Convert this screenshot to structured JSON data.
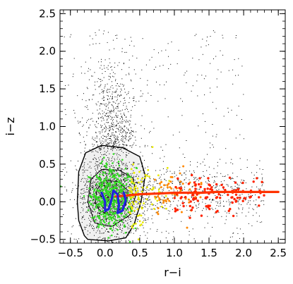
{
  "chart_data": {
    "type": "scatter",
    "title": "",
    "xlabel": "r−i",
    "ylabel": "i−z",
    "xlim": [
      -0.65,
      2.6
    ],
    "ylim": [
      -0.55,
      2.55
    ],
    "xticks": [
      -0.5,
      0.0,
      0.5,
      1.0,
      1.5,
      2.0,
      2.5
    ],
    "xtick_labels": [
      "−0.5",
      "0.0",
      "0.5",
      "1.0",
      "1.5",
      "2.0",
      "2.5"
    ],
    "yticks": [
      -0.5,
      0.0,
      0.5,
      1.0,
      1.5,
      2.0,
      2.5
    ],
    "ytick_labels": [
      "−0.5",
      "0.0",
      "0.5",
      "1.0",
      "1.5",
      "2.0",
      "2.5"
    ],
    "grid": false,
    "legend": "none",
    "colors": {
      "points_field": "#000000",
      "density_fill": "#e6e6e6",
      "contours": "#000000",
      "green_points": "#33dd22",
      "yellow_points": "#e8e800",
      "orange_points": "#ff8800",
      "red_points": "#ff2200",
      "locus_line_red": "#ff3300",
      "locus_line_blue": "#2222dd"
    },
    "density_region": {
      "outer_contour": [
        [
          -0.3,
          -0.45
        ],
        [
          -0.25,
          -0.5
        ],
        [
          0.05,
          -0.52
        ],
        [
          0.3,
          -0.48
        ],
        [
          0.42,
          -0.3
        ],
        [
          0.52,
          0.0
        ],
        [
          0.58,
          0.35
        ],
        [
          0.5,
          0.6
        ],
        [
          0.25,
          0.72
        ],
        [
          -0.05,
          0.75
        ],
        [
          -0.28,
          0.65
        ],
        [
          -0.38,
          0.4
        ],
        [
          -0.4,
          0.0
        ],
        [
          -0.38,
          -0.25
        ]
      ],
      "middle_contour": [
        [
          -0.15,
          -0.28
        ],
        [
          0.1,
          -0.33
        ],
        [
          0.35,
          -0.18
        ],
        [
          0.45,
          0.1
        ],
        [
          0.4,
          0.32
        ],
        [
          0.2,
          0.42
        ],
        [
          -0.05,
          0.43
        ],
        [
          -0.2,
          0.3
        ],
        [
          -0.25,
          0.0
        ]
      ],
      "inner_contour": [
        [
          -0.08,
          -0.12
        ],
        [
          0.1,
          -0.18
        ],
        [
          0.3,
          -0.05
        ],
        [
          0.33,
          0.15
        ],
        [
          0.18,
          0.27
        ],
        [
          -0.02,
          0.28
        ],
        [
          -0.12,
          0.15
        ],
        [
          -0.14,
          0.0
        ]
      ]
    },
    "series": [
      {
        "type": "line",
        "points": [
          [
            0.15,
            0.07
          ],
          [
            0.5,
            0.1
          ],
          [
            0.8,
            0.11
          ],
          [
            1.0,
            0.12
          ],
          [
            1.2,
            0.12
          ],
          [
            1.4,
            0.12
          ],
          [
            1.6,
            0.13
          ],
          [
            1.8,
            0.13
          ],
          [
            2.0,
            0.13
          ],
          [
            2.2,
            0.13
          ],
          [
            2.5,
            0.13
          ]
        ]
      },
      {
        "type": "line",
        "points": [
          [
            -0.05,
            0.12
          ],
          [
            0.0,
            0.0
          ],
          [
            0.0,
            -0.12
          ],
          [
            0.05,
            -0.1
          ],
          [
            0.1,
            0.05
          ],
          [
            0.12,
            0.15
          ],
          [
            0.18,
            0.1
          ],
          [
            0.2,
            -0.05
          ],
          [
            0.18,
            -0.15
          ],
          [
            0.25,
            -0.12
          ],
          [
            0.3,
            0.02
          ],
          [
            0.27,
            0.12
          ]
        ]
      }
    ]
  }
}
